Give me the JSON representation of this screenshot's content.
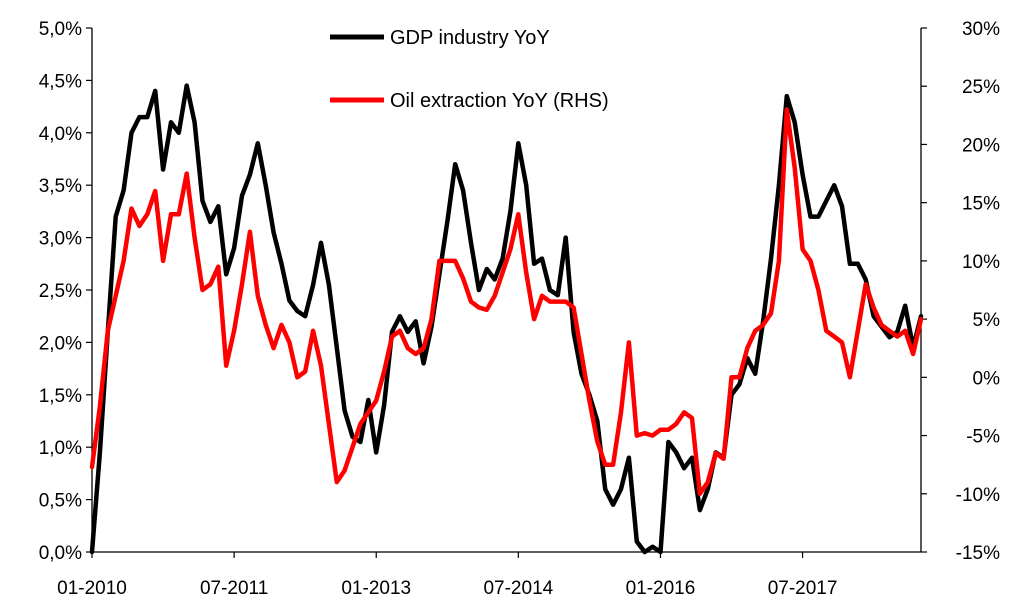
{
  "chart_data": {
    "type": "line",
    "title": "",
    "xlabel": "",
    "ylabel": "",
    "x_tick_labels": [
      "01-2010",
      "07-2011",
      "01-2013",
      "07-2014",
      "01-2016",
      "07-2017"
    ],
    "y_left": {
      "ylim": [
        0,
        5
      ],
      "ticks": [
        0,
        0.5,
        1,
        1.5,
        2,
        2.5,
        3,
        3.5,
        4,
        4.5,
        5
      ],
      "tick_labels": [
        "0,0%",
        "0,5%",
        "1,0%",
        "1,5%",
        "2,0%",
        "2,5%",
        "3,0%",
        "3,5%",
        "4,0%",
        "4,5%",
        "5,0%"
      ]
    },
    "y_right": {
      "ylim": [
        -15,
        30
      ],
      "ticks": [
        -15,
        -10,
        -5,
        0,
        5,
        10,
        15,
        20,
        25,
        30
      ],
      "tick_labels": [
        "-15%",
        "-10%",
        "-5%",
        "0%",
        "5%",
        "10%",
        "15%",
        "20%",
        "25%",
        "30%"
      ]
    },
    "grid": false,
    "legend_position": "top-center",
    "series": [
      {
        "name": "GDP industry YoY",
        "axis": "left",
        "color": "#000000",
        "points": [
          [
            0,
            0.0
          ],
          [
            1,
            0.95
          ],
          [
            2,
            2.1
          ],
          [
            3,
            3.2
          ],
          [
            4,
            3.45
          ],
          [
            5,
            4.0
          ],
          [
            6,
            4.15
          ],
          [
            7,
            4.15
          ],
          [
            8,
            4.4
          ],
          [
            9,
            3.65
          ],
          [
            10,
            4.1
          ],
          [
            11,
            4.0
          ],
          [
            12,
            4.45
          ],
          [
            13,
            4.1
          ],
          [
            14,
            3.35
          ],
          [
            15,
            3.15
          ],
          [
            16,
            3.3
          ],
          [
            17,
            2.65
          ],
          [
            18,
            2.9
          ],
          [
            19,
            3.4
          ],
          [
            20,
            3.6
          ],
          [
            21,
            3.9
          ],
          [
            22,
            3.5
          ],
          [
            23,
            3.05
          ],
          [
            24,
            2.75
          ],
          [
            25,
            2.4
          ],
          [
            26,
            2.3
          ],
          [
            27,
            2.25
          ],
          [
            28,
            2.55
          ],
          [
            29,
            2.95
          ],
          [
            30,
            2.55
          ],
          [
            31,
            1.95
          ],
          [
            32,
            1.35
          ],
          [
            33,
            1.1
          ],
          [
            34,
            1.05
          ],
          [
            35,
            1.45
          ],
          [
            36,
            0.95
          ],
          [
            37,
            1.4
          ],
          [
            38,
            2.1
          ],
          [
            39,
            2.25
          ],
          [
            40,
            2.1
          ],
          [
            41,
            2.2
          ],
          [
            42,
            1.8
          ],
          [
            43,
            2.15
          ],
          [
            44,
            2.65
          ],
          [
            45,
            3.15
          ],
          [
            46,
            3.7
          ],
          [
            47,
            3.45
          ],
          [
            48,
            2.95
          ],
          [
            49,
            2.5
          ],
          [
            50,
            2.7
          ],
          [
            51,
            2.6
          ],
          [
            52,
            2.8
          ],
          [
            53,
            3.25
          ],
          [
            54,
            3.9
          ],
          [
            55,
            3.5
          ],
          [
            56,
            2.75
          ],
          [
            57,
            2.8
          ],
          [
            58,
            2.5
          ],
          [
            59,
            2.45
          ],
          [
            60,
            3.0
          ],
          [
            61,
            2.1
          ],
          [
            62,
            1.7
          ],
          [
            63,
            1.5
          ],
          [
            64,
            1.25
          ],
          [
            65,
            0.6
          ],
          [
            66,
            0.45
          ],
          [
            67,
            0.6
          ],
          [
            68,
            0.9
          ],
          [
            69,
            0.1
          ],
          [
            70,
            0.0
          ],
          [
            71,
            0.05
          ],
          [
            72,
            0.0
          ],
          [
            73,
            1.05
          ],
          [
            74,
            0.95
          ],
          [
            75,
            0.8
          ],
          [
            76,
            0.9
          ],
          [
            77,
            0.4
          ],
          [
            78,
            0.6
          ],
          [
            79,
            0.95
          ],
          [
            80,
            0.9
          ],
          [
            81,
            1.5
          ],
          [
            82,
            1.6
          ],
          [
            83,
            1.85
          ],
          [
            84,
            1.7
          ],
          [
            85,
            2.2
          ],
          [
            86,
            2.8
          ],
          [
            87,
            3.5
          ],
          [
            88,
            4.35
          ],
          [
            89,
            4.1
          ],
          [
            90,
            3.6
          ],
          [
            91,
            3.2
          ],
          [
            92,
            3.2
          ],
          [
            93,
            3.35
          ],
          [
            94,
            3.5
          ],
          [
            95,
            3.3
          ],
          [
            96,
            2.75
          ],
          [
            97,
            2.75
          ],
          [
            98,
            2.6
          ],
          [
            99,
            2.25
          ],
          [
            100,
            2.15
          ],
          [
            101,
            2.05
          ],
          [
            102,
            2.1
          ],
          [
            103,
            2.35
          ],
          [
            104,
            1.95
          ],
          [
            105,
            2.25
          ]
        ]
      },
      {
        "name": "Oil extraction YoY (RHS)",
        "axis": "right",
        "color": "#ff0000",
        "points": [
          [
            0,
            -7.7
          ],
          [
            1,
            -2.5
          ],
          [
            2,
            4.0
          ],
          [
            3,
            7.0
          ],
          [
            4,
            10.0
          ],
          [
            5,
            14.5
          ],
          [
            6,
            13.0
          ],
          [
            7,
            14.0
          ],
          [
            8,
            16.0
          ],
          [
            9,
            10.0
          ],
          [
            10,
            14.0
          ],
          [
            11,
            14.0
          ],
          [
            12,
            17.5
          ],
          [
            13,
            12.0
          ],
          [
            14,
            7.5
          ],
          [
            15,
            8.0
          ],
          [
            16,
            9.5
          ],
          [
            17,
            1.0
          ],
          [
            18,
            4.0
          ],
          [
            19,
            8.0
          ],
          [
            20,
            12.5
          ],
          [
            21,
            7.0
          ],
          [
            22,
            4.5
          ],
          [
            23,
            2.5
          ],
          [
            24,
            4.5
          ],
          [
            25,
            3.0
          ],
          [
            26,
            0.0
          ],
          [
            27,
            0.5
          ],
          [
            28,
            4.0
          ],
          [
            29,
            1.0
          ],
          [
            30,
            -4.0
          ],
          [
            31,
            -9.0
          ],
          [
            32,
            -8.0
          ],
          [
            33,
            -6.0
          ],
          [
            34,
            -4.0
          ],
          [
            35,
            -3.0
          ],
          [
            36,
            -2.0
          ],
          [
            37,
            0.5
          ],
          [
            38,
            3.5
          ],
          [
            39,
            4.0
          ],
          [
            40,
            2.5
          ],
          [
            41,
            2.0
          ],
          [
            42,
            2.5
          ],
          [
            43,
            5.0
          ],
          [
            44,
            10.0
          ],
          [
            45,
            10.0
          ],
          [
            46,
            10.0
          ],
          [
            47,
            8.5
          ],
          [
            48,
            6.5
          ],
          [
            49,
            6.0
          ],
          [
            50,
            5.8
          ],
          [
            51,
            7.0
          ],
          [
            52,
            9.0
          ],
          [
            53,
            11.0
          ],
          [
            54,
            14.0
          ],
          [
            55,
            9.0
          ],
          [
            56,
            5.0
          ],
          [
            57,
            7.0
          ],
          [
            58,
            6.5
          ],
          [
            59,
            6.5
          ],
          [
            60,
            6.5
          ],
          [
            61,
            6.0
          ],
          [
            62,
            2.0
          ],
          [
            63,
            -2.0
          ],
          [
            64,
            -5.5
          ],
          [
            65,
            -7.5
          ],
          [
            66,
            -7.5
          ],
          [
            67,
            -3.0
          ],
          [
            68,
            3.0
          ],
          [
            69,
            -5.0
          ],
          [
            70,
            -4.8
          ],
          [
            71,
            -5.0
          ],
          [
            72,
            -4.5
          ],
          [
            73,
            -4.5
          ],
          [
            74,
            -4.0
          ],
          [
            75,
            -3.0
          ],
          [
            76,
            -3.5
          ],
          [
            77,
            -10.0
          ],
          [
            78,
            -9.0
          ],
          [
            79,
            -6.5
          ],
          [
            80,
            -7.0
          ],
          [
            81,
            0.0
          ],
          [
            82,
            0.0
          ],
          [
            83,
            2.5
          ],
          [
            84,
            4.0
          ],
          [
            85,
            4.5
          ],
          [
            86,
            5.5
          ],
          [
            87,
            10.0
          ],
          [
            88,
            23.0
          ],
          [
            89,
            18.0
          ],
          [
            90,
            11.0
          ],
          [
            91,
            10.0
          ],
          [
            92,
            7.5
          ],
          [
            93,
            4.0
          ],
          [
            94,
            3.5
          ],
          [
            95,
            3.0
          ],
          [
            96,
            0.0
          ],
          [
            97,
            4.0
          ],
          [
            98,
            8.0
          ],
          [
            99,
            6.0
          ],
          [
            100,
            4.5
          ],
          [
            101,
            4.0
          ],
          [
            102,
            3.5
          ],
          [
            103,
            4.0
          ],
          [
            104,
            2.0
          ],
          [
            105,
            5.0
          ]
        ]
      }
    ]
  }
}
